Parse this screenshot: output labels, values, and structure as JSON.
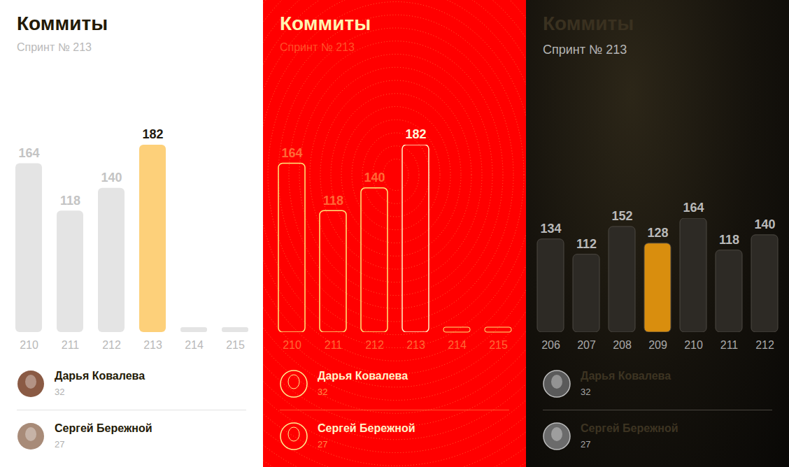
{
  "chart_data": [
    {
      "type": "bar",
      "title": "Коммиты",
      "subtitle": "Спринт № 213",
      "categories": [
        "210",
        "211",
        "212",
        "213",
        "214",
        "215"
      ],
      "values": [
        164,
        118,
        140,
        182,
        null,
        null
      ],
      "colors": [
        "#e4e4e4",
        "#e4e4e4",
        "#e4e4e4",
        "#fdd07a",
        "#e4e4e4",
        "#e4e4e4"
      ],
      "ylim": [
        0,
        182
      ],
      "yticks": [],
      "data_labels": true,
      "tick_labels": "x",
      "contributors": [
        {
          "name": "Дарья Ковалева",
          "value": 32
        },
        {
          "name": "Сергей Бережной",
          "value": 27
        }
      ]
    },
    {
      "type": "bar",
      "title": "Коммиты",
      "subtitle": "Спринт № 213",
      "categories": [
        "210",
        "211",
        "212",
        "213",
        "214",
        "215"
      ],
      "values": [
        164,
        118,
        140,
        182,
        null,
        null
      ],
      "colors": [
        "#ffe97a",
        "#ffe97a",
        "#ffe97a",
        "#fff6c8",
        "#ffe97a",
        "#ffe97a"
      ],
      "ylim": [
        0,
        182
      ],
      "yticks": [],
      "data_labels": true,
      "tick_labels": "x",
      "contributors": [
        {
          "name": "Дарья Ковалева",
          "value": 32
        },
        {
          "name": "Сергей Бережной",
          "value": 27
        }
      ]
    },
    {
      "type": "bar",
      "title": "Коммиты",
      "subtitle": "Спринт № 213",
      "categories": [
        "206",
        "207",
        "208",
        "209",
        "210",
        "211",
        "212"
      ],
      "values": [
        134,
        112,
        152,
        128,
        164,
        118,
        140
      ],
      "colors": [
        "#2d2a25",
        "#2d2a25",
        "#2d2a25",
        "#d98e0e",
        "#2d2a25",
        "#2d2a25",
        "#2d2a25"
      ],
      "ylim": [
        0,
        164
      ],
      "yticks": [],
      "data_labels": true,
      "tick_labels": "x",
      "contributors": [
        {
          "name": "Дарья Ковалева",
          "value": 32
        },
        {
          "name": "Сергей Бережной",
          "value": 27
        }
      ]
    }
  ]
}
